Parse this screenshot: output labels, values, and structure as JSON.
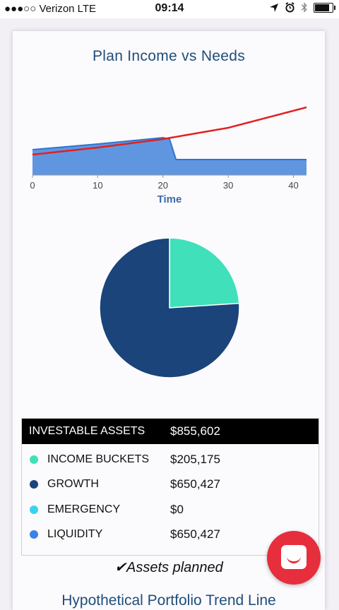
{
  "status_bar": {
    "carrier": "●●●○○ Verizon  LTE",
    "time": "09:14",
    "battery_level": 0.9
  },
  "income_chart": {
    "title": "Plan Income vs Needs",
    "chart_data": {
      "type": "area",
      "title": "Plan Income vs Needs",
      "xlabel": "Time",
      "ylabel": "",
      "x_ticks": [
        "0",
        "10",
        "20",
        "30",
        "40"
      ],
      "xlim": [
        0,
        42
      ],
      "ylim": [
        0,
        1
      ],
      "grid": false,
      "legend": "none",
      "series": [
        {
          "values": [
            [
              0,
              0.36
            ],
            [
              10,
              0.44
            ],
            [
              20,
              0.53
            ],
            [
              21,
              0.51
            ],
            [
              22,
              0.22
            ],
            [
              30,
              0.22
            ],
            [
              42,
              0.22
            ]
          ]
        },
        {
          "values": [
            [
              0,
              0.29
            ],
            [
              10,
              0.39
            ],
            [
              20,
              0.51
            ],
            [
              30,
              0.67
            ],
            [
              42,
              0.96
            ]
          ]
        }
      ],
      "colors": {
        "area_fill": "#6096e0",
        "area_line": "#2f74d0",
        "needs_line": "#e02020"
      }
    }
  },
  "allocation_chart": {
    "chart_data": {
      "type": "pie",
      "slices": [
        {
          "label": "INCOME BUCKETS",
          "value": 205175,
          "color": "#40e0bb"
        },
        {
          "label": "GROWTH",
          "value": 650427,
          "color": "#1a447a"
        }
      ]
    }
  },
  "assets_table": {
    "header_label": "INVESTABLE ASSETS",
    "header_value": "$855,602",
    "rows": [
      {
        "label": "INCOME BUCKETS",
        "value": "$205,175",
        "color": "#40e0bb"
      },
      {
        "label": "GROWTH",
        "value": "$650,427",
        "color": "#1a447a"
      },
      {
        "label": "EMERGENCY",
        "value": "$0",
        "color": "#3ad2f0"
      },
      {
        "label": "LIQUIDITY",
        "value": "$650,427",
        "color": "#3b82e6"
      }
    ]
  },
  "status_message": "✔Assets planned",
  "next_section_title": "Hypothetical Portfolio Trend Line",
  "chat_button": {
    "icon": "chat-bubble-icon",
    "color": "#e62e3d"
  }
}
